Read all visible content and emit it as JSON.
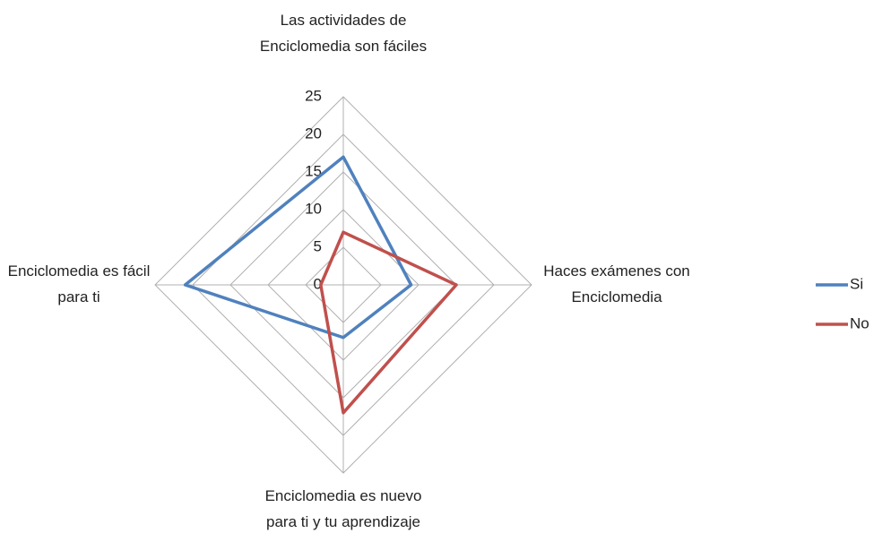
{
  "chart_data": {
    "type": "radar",
    "categories": [
      "Las actividades de Enciclomedia son fáciles",
      "Haces exámenes con Enciclomedia",
      "Enciclomedia es nuevo para ti y tu aprendizaje",
      "Enciclomedia es fácil para ti"
    ],
    "series": [
      {
        "name": "Si",
        "color": "#4f81bd",
        "values": [
          17,
          9,
          7,
          21
        ]
      },
      {
        "name": "No",
        "color": "#c0504d",
        "values": [
          7,
          15,
          17,
          3
        ]
      }
    ],
    "ylim": [
      0,
      25
    ],
    "yticks": [
      0,
      5,
      10,
      15,
      20,
      25
    ],
    "grid": true,
    "legend": "right"
  }
}
